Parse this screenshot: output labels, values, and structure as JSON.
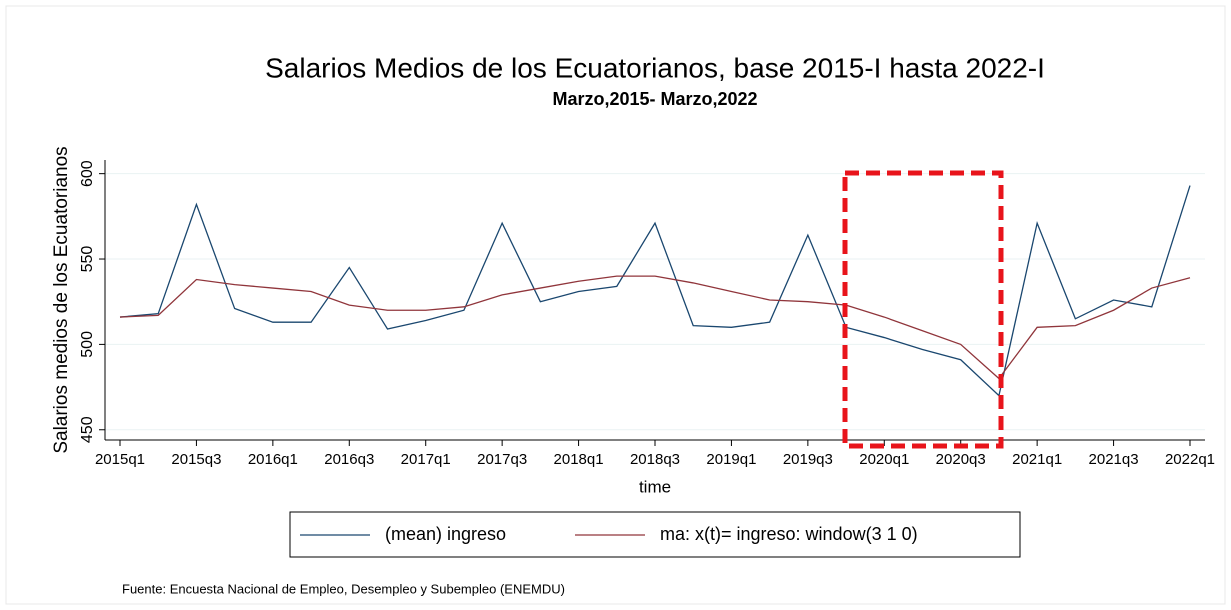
{
  "chart_data": {
    "type": "line",
    "title": "Salarios Medios de los Ecuatorianos, base 2015-I hasta 2022-I",
    "subtitle": "Marzo,2015- Marzo,2022",
    "x_label": "time",
    "y_label": "Salarios medios de los Ecuatorianos",
    "note": "Fuente: Encuesta Nacional de Empleo, Desempleo y Subempleo (ENEMDU)",
    "categories": [
      "2015q1",
      null,
      "2015q3",
      null,
      "2016q1",
      null,
      "2016q3",
      null,
      "2017q1",
      null,
      "2017q3",
      null,
      "2018q1",
      null,
      "2018q3",
      null,
      "2019q1",
      null,
      "2019q3",
      null,
      "2020q1",
      null,
      "2020q3",
      null,
      "2021q1",
      null,
      "2021q3",
      null,
      "2022q1"
    ],
    "series": [
      {
        "name": "(mean) ingreso",
        "color": "#1a476f",
        "values": [
          516,
          518,
          582,
          521,
          513,
          513,
          545,
          509,
          514,
          520,
          571,
          525,
          531,
          534,
          571,
          511,
          510,
          513,
          564,
          510,
          504,
          497,
          491,
          470,
          571,
          515,
          526,
          522,
          593
        ]
      },
      {
        "name": "ma: x(t)= ingreso: window(3 1 0)",
        "color": "#90353b",
        "values": [
          516,
          517,
          538,
          535,
          533,
          531,
          523,
          520,
          520,
          522,
          529,
          533,
          537,
          540,
          540,
          536,
          531,
          526,
          525,
          523,
          516,
          508,
          500,
          480,
          510,
          511,
          520,
          533,
          539
        ]
      }
    ],
    "ylim": [
      444,
      608
    ],
    "yticks": [
      450,
      500,
      550,
      600
    ],
    "grid": true
  }
}
